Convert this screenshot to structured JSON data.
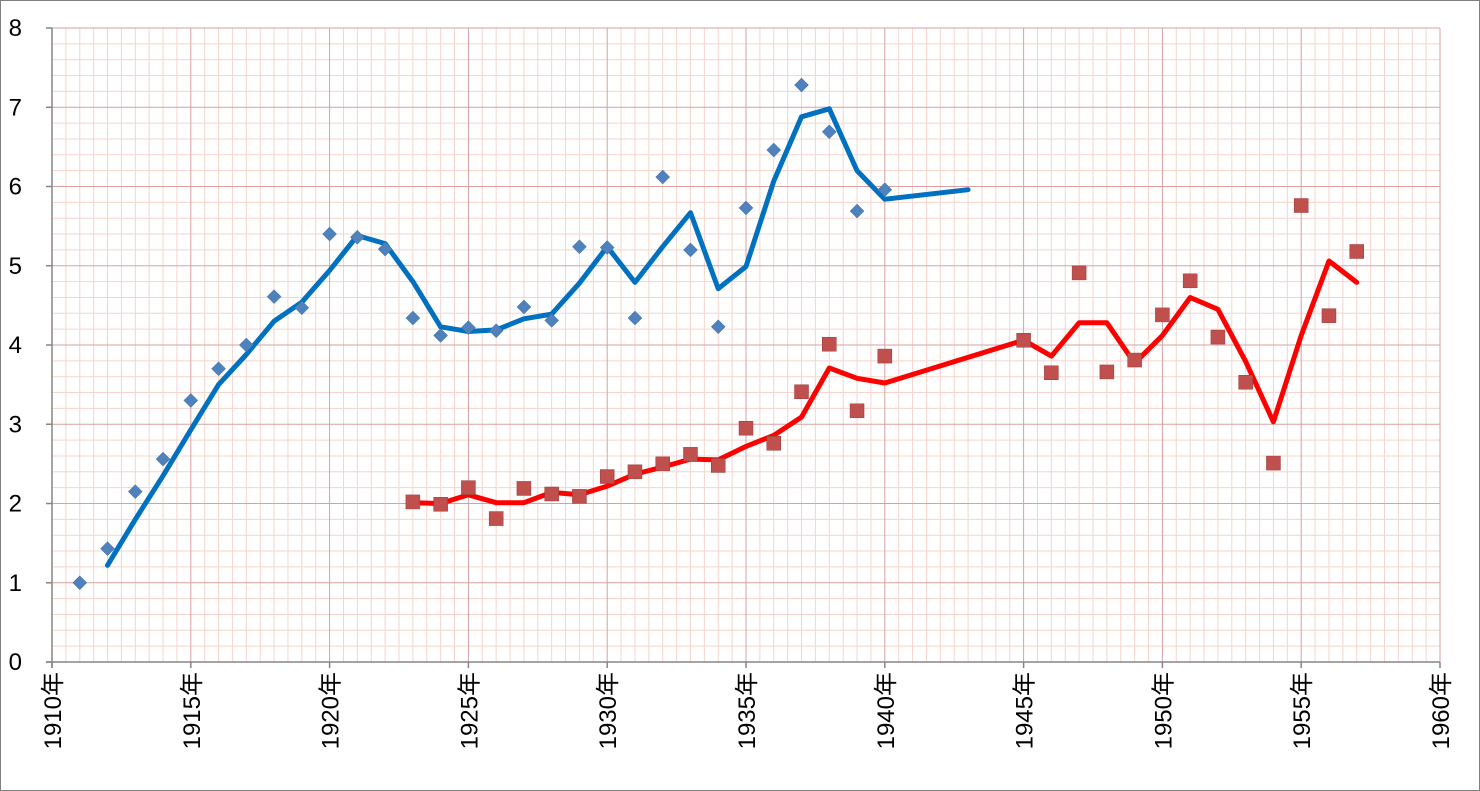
{
  "chart_data": {
    "type": "scatter",
    "title": "",
    "xlabel": "",
    "ylabel": "",
    "xlim": [
      1910,
      1960
    ],
    "ylim": [
      0,
      8
    ],
    "x_tick_labels": [
      "1910年",
      "1915年",
      "1920年",
      "1925年",
      "1930年",
      "1935年",
      "1940年",
      "1945年",
      "1950年",
      "1955年",
      "1960年"
    ],
    "y_tick_labels": [
      "0",
      "1",
      "2",
      "3",
      "4",
      "5",
      "6",
      "7",
      "8"
    ],
    "grid": true,
    "legend": "none",
    "colors": {
      "blue_points": "#4F81BD",
      "blue_line": "#0070C0",
      "red_points": "#C0504D",
      "red_line": "#FF0000",
      "major_grid": "#D9A0A0",
      "minor_grid": "#F5D5CC"
    },
    "series": [
      {
        "kind": "points",
        "marker": "diamond",
        "x": [
          1911,
          1912,
          1913,
          1914,
          1915,
          1916,
          1917,
          1918,
          1919,
          1920,
          1921,
          1922,
          1923,
          1924,
          1925,
          1926,
          1927,
          1928,
          1929,
          1930,
          1931,
          1932,
          1933,
          1934,
          1935,
          1936,
          1937,
          1938,
          1939,
          1940
        ],
        "y": [
          1.0,
          1.43,
          2.15,
          2.56,
          3.3,
          3.7,
          4.0,
          4.61,
          4.47,
          5.4,
          5.36,
          5.21,
          4.34,
          4.12,
          4.22,
          4.18,
          4.48,
          4.31,
          5.24,
          5.23,
          4.34,
          6.12,
          5.2,
          4.23,
          5.73,
          6.46,
          7.28,
          6.69,
          5.69,
          5.96
        ]
      },
      {
        "kind": "line",
        "x": [
          1912,
          1913,
          1914,
          1915,
          1916,
          1917,
          1918,
          1919,
          1920,
          1921,
          1922,
          1923,
          1924,
          1925,
          1926,
          1927,
          1928,
          1929,
          1930,
          1931,
          1932,
          1933,
          1934,
          1935,
          1936,
          1937,
          1938,
          1939,
          1940,
          1943
        ],
        "y": [
          1.22,
          1.8,
          2.35,
          2.93,
          3.5,
          3.88,
          4.3,
          4.54,
          4.94,
          5.38,
          5.28,
          4.8,
          4.23,
          4.17,
          4.19,
          4.33,
          4.39,
          4.78,
          5.24,
          4.79,
          5.24,
          5.67,
          4.71,
          4.99,
          6.07,
          6.88,
          6.98,
          6.2,
          5.84,
          5.96
        ]
      },
      {
        "kind": "points",
        "marker": "square",
        "x": [
          1923,
          1924,
          1925,
          1926,
          1927,
          1928,
          1929,
          1930,
          1931,
          1932,
          1933,
          1934,
          1935,
          1936,
          1937,
          1938,
          1939,
          1940,
          1945,
          1946,
          1947,
          1948,
          1949,
          1950,
          1951,
          1952,
          1953,
          1954,
          1955,
          1956,
          1957
        ],
        "y": [
          2.02,
          1.99,
          2.2,
          1.81,
          2.19,
          2.12,
          2.09,
          2.34,
          2.4,
          2.5,
          2.62,
          2.48,
          2.95,
          2.76,
          3.41,
          4.01,
          3.17,
          3.86,
          4.06,
          3.65,
          4.91,
          3.66,
          3.81,
          4.38,
          4.81,
          4.1,
          3.53,
          2.51,
          5.76,
          4.37,
          5.18
        ]
      },
      {
        "kind": "line",
        "x": [
          1923,
          1924,
          1925,
          1926,
          1927,
          1928,
          1929,
          1930,
          1931,
          1932,
          1933,
          1934,
          1935,
          1936,
          1937,
          1938,
          1939,
          1940,
          1945,
          1946,
          1947,
          1948,
          1949,
          1950,
          1951,
          1952,
          1953,
          1954,
          1955,
          1956,
          1957
        ],
        "y": [
          2.01,
          2.0,
          2.11,
          2.01,
          2.01,
          2.14,
          2.11,
          2.22,
          2.37,
          2.46,
          2.56,
          2.55,
          2.72,
          2.86,
          3.09,
          3.71,
          3.58,
          3.52,
          4.06,
          3.86,
          4.28,
          4.28,
          3.77,
          4.12,
          4.6,
          4.45,
          3.79,
          3.03,
          4.12,
          5.06,
          4.79
        ]
      }
    ]
  }
}
